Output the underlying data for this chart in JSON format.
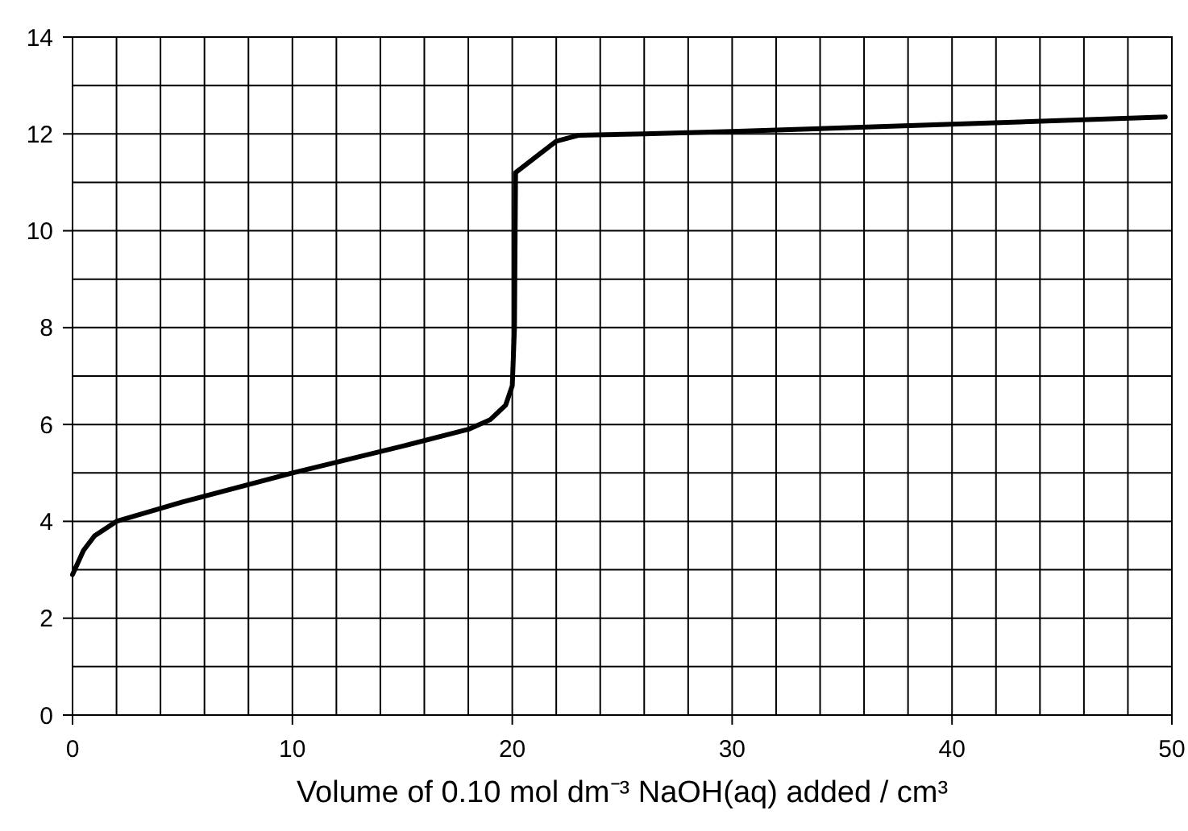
{
  "chart_data": {
    "type": "line",
    "xlabel": "Volume of 0.10 mol dm⁻³ NaOH(aq) added / cm³",
    "xlim": [
      0,
      50
    ],
    "ylim": [
      0,
      14
    ],
    "xticks": [
      0,
      {
        "value": 2,
        "label": null
      },
      {
        "value": 4,
        "label": null
      },
      {
        "value": 6,
        "label": null
      },
      {
        "value": 8,
        "label": null
      },
      10,
      {
        "value": 12,
        "label": null
      },
      {
        "value": 14,
        "label": null
      },
      {
        "value": 16,
        "label": null
      },
      {
        "value": 18,
        "label": null
      },
      20,
      {
        "value": 22,
        "label": null
      },
      {
        "value": 24,
        "label": null
      },
      {
        "value": 26,
        "label": null
      },
      {
        "value": 28,
        "label": null
      },
      30,
      {
        "value": 32,
        "label": null
      },
      {
        "value": 34,
        "label": null
      },
      {
        "value": 36,
        "label": null
      },
      {
        "value": 38,
        "label": null
      },
      40,
      {
        "value": 42,
        "label": null
      },
      {
        "value": 44,
        "label": null
      },
      {
        "value": 46,
        "label": null
      },
      {
        "value": 48,
        "label": null
      },
      50
    ],
    "yticks": [
      0,
      {
        "value": 1,
        "label": null
      },
      2,
      {
        "value": 3,
        "label": null
      },
      4,
      {
        "value": 5,
        "label": null
      },
      6,
      {
        "value": 7,
        "label": null
      },
      8,
      {
        "value": 9,
        "label": null
      },
      10,
      {
        "value": 11,
        "label": null
      },
      12,
      {
        "value": 13,
        "label": null
      },
      14
    ],
    "grid": true,
    "marker": "none",
    "line_style": "solid",
    "series": [
      {
        "color": "#000000",
        "x": [
          0,
          0.5,
          1,
          1.5,
          2,
          5,
          10,
          15,
          18,
          19,
          19.7,
          20,
          20.1,
          20.15,
          21,
          22,
          23,
          26,
          30,
          40,
          49.7
        ],
        "values": [
          2.9,
          3.4,
          3.7,
          3.85,
          4.0,
          4.4,
          5.0,
          5.55,
          5.9,
          6.1,
          6.4,
          6.8,
          8,
          11.2,
          11.5,
          11.85,
          11.97,
          12.0,
          12.05,
          12.2,
          12.35
        ]
      }
    ]
  }
}
